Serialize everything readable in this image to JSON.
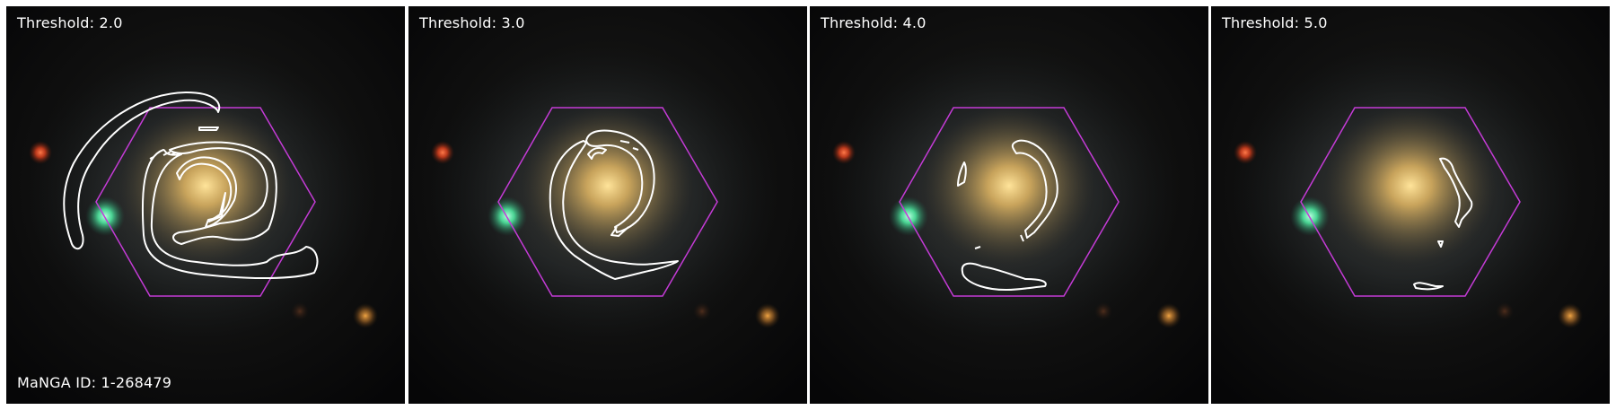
{
  "manga_id": "MaNGA ID: 1-268479",
  "colors": {
    "hexagon": "#c43bd6",
    "contour": "#ffffff",
    "galaxy_core": "#f2c46c",
    "green_star": "#5cffb0",
    "red_star": "#ff4a2a"
  },
  "panels": [
    {
      "threshold_label": "Threshold: 2.0",
      "threshold": 2.0
    },
    {
      "threshold_label": "Threshold: 3.0",
      "threshold": 3.0
    },
    {
      "threshold_label": "Threshold: 4.0",
      "threshold": 4.0
    },
    {
      "threshold_label": "Threshold: 5.0",
      "threshold": 5.0
    }
  ]
}
